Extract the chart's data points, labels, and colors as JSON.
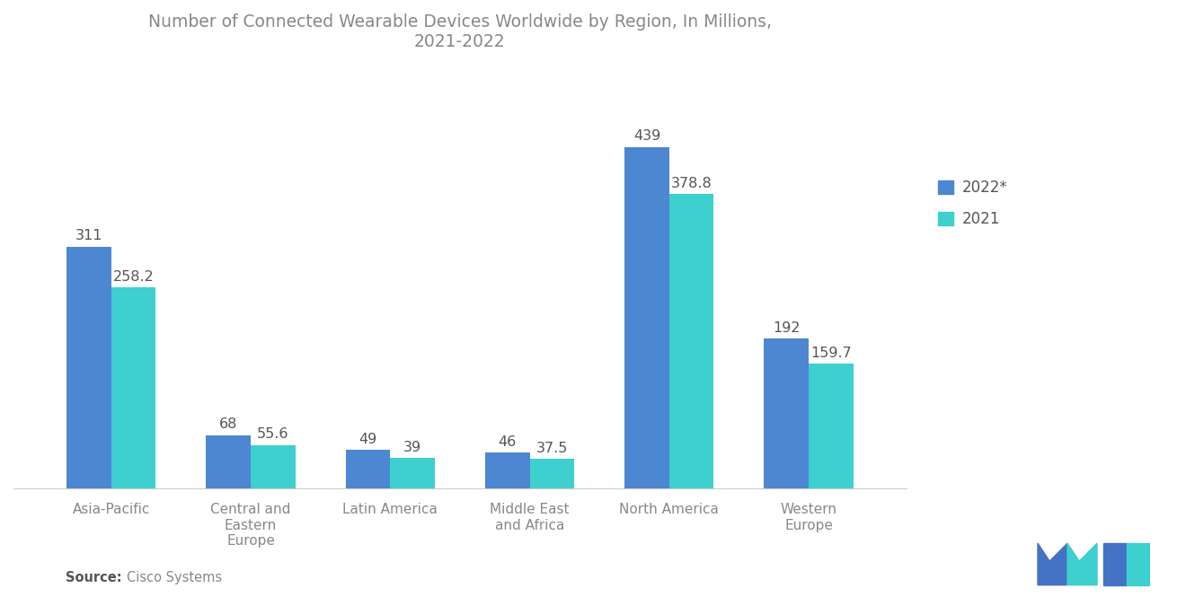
{
  "title": "Number of Connected Wearable Devices Worldwide by Region, In Millions,\n2021-2022",
  "categories": [
    "Asia-Pacific",
    "Central and\nEastern\nEurope",
    "Latin America",
    "Middle East\nand Africa",
    "North America",
    "Western\nEurope"
  ],
  "values_2022": [
    311,
    68,
    49,
    46,
    439,
    192
  ],
  "values_2021": [
    258.2,
    55.6,
    39,
    37.5,
    378.8,
    159.7
  ],
  "labels_2022": [
    "311",
    "68",
    "49",
    "46",
    "439",
    "192"
  ],
  "labels_2021": [
    "258.2",
    "55.6",
    "39",
    "37.5",
    "378.8",
    "159.7"
  ],
  "color_2022": "#4D86D1",
  "color_2021": "#3ECFCF",
  "legend_labels": [
    "2022*",
    "2021"
  ],
  "source_bold": "Source:",
  "source_detail": "Cisco Systems",
  "background_color": "#FFFFFF",
  "title_color": "#888888",
  "label_color": "#555555",
  "tick_color": "#888888",
  "bar_width": 0.32,
  "ylim": [
    0,
    520
  ],
  "logo_color_blue": "#4472C4",
  "logo_color_cyan": "#3ECFCF"
}
